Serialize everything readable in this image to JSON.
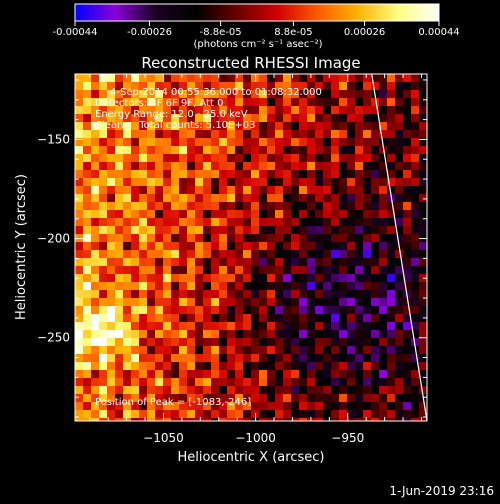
{
  "colorbar": {
    "ticks": [
      "-0.00044",
      "-0.00026",
      "-8.8e-05",
      "8.8e-05",
      "0.00026",
      "0.00044"
    ],
    "units": "(photons cm⁻² s⁻¹ asec⁻²)",
    "colormap": [
      "#0000ff",
      "#8a00d8",
      "#1a001f",
      "#000000",
      "#6a0000",
      "#d20000",
      "#ff5a00",
      "#ffb400",
      "#ffff80",
      "#ffffff"
    ]
  },
  "annotations": {
    "time_range": "4-Sep-2014 00:55:36.000 to 01:08:32.000",
    "detectors": "Detectors: 3F 6F 9F, Att 0",
    "energy": "Energy Range: 12.0 - 25.0 keV",
    "clean": "Clean     Total counts: 5.10E+03",
    "peak": "Position of Peak = [-1083,-246]"
  },
  "footer": {
    "timestamp": "1-Jun-2019 23:16"
  },
  "chart_data": {
    "type": "heatmap",
    "title": "Reconstructed RHESSI Image",
    "xlabel": "Heliocentric X (arcsec)",
    "ylabel": "Heliocentric Y (arcsec)",
    "xlim": [
      -1098,
      -907
    ],
    "ylim": [
      -292,
      -117
    ],
    "x_ticks": [
      -1050,
      -1000,
      -950
    ],
    "y_ticks": [
      -150,
      -200,
      -250
    ],
    "clim": [
      -0.00044,
      0.00044
    ],
    "peak": [
      -1083,
      -246
    ],
    "limb_line": [
      [
        -937,
        -117
      ],
      [
        -907,
        -292
      ]
    ]
  }
}
